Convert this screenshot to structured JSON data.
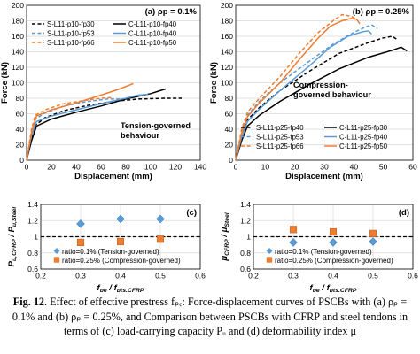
{
  "colors": {
    "black": "#000000",
    "blue": "#5B9BD5",
    "orange": "#ED7D31",
    "ref_line": "#000000",
    "marker_blue": "#5B9BD5",
    "marker_orange": "#ED7D31"
  },
  "caption": {
    "fig_label": "Fig. 12",
    "text": ". Effect of effective prestress fₚₑ: Force-displacement curves of PSCBs with (a) ρₚ = 0.1% and (b) ρₚ = 0.25%, and Comparison between PSCBs with CFRP and steel tendons in terms of (c) load-carrying capacity Pᵤ and (d) deformability index μ"
  },
  "chart_data": [
    {
      "id": "a",
      "type": "line",
      "panel_label": "(a) ρp = 0.1%",
      "xlabel": "Displacement (mm)",
      "ylabel": "Force (kN)",
      "xlim": [
        0,
        140
      ],
      "ylim": [
        0,
        200
      ],
      "xticks": [
        0,
        20,
        40,
        60,
        80,
        100,
        120,
        140
      ],
      "yticks": [
        0,
        20,
        40,
        60,
        80,
        100,
        120,
        140,
        160,
        180,
        200
      ],
      "annotation": [
        "Tension-governed",
        "behaviour"
      ],
      "legend_position": "top-left",
      "series": [
        {
          "name": "S-L11-p10-fp30",
          "color": "#000000",
          "dash": "dashed",
          "points": [
            [
              0,
              0
            ],
            [
              4,
              28
            ],
            [
              7,
              45
            ],
            [
              15,
              55
            ],
            [
              30,
              64
            ],
            [
              50,
              71
            ],
            [
              70,
              76
            ],
            [
              90,
              79
            ],
            [
              112,
              80
            ],
            [
              125,
              80
            ]
          ]
        },
        {
          "name": "S-L11-p10-fp53",
          "color": "#5B9BD5",
          "dash": "dashed",
          "points": [
            [
              0,
              0
            ],
            [
              4,
              36
            ],
            [
              7,
              53
            ],
            [
              15,
              61
            ],
            [
              30,
              70
            ],
            [
              50,
              76
            ],
            [
              65,
              79
            ],
            [
              80,
              79
            ]
          ]
        },
        {
          "name": "S-L11-p10-fp66",
          "color": "#ED7D31",
          "dash": "dashed",
          "points": [
            [
              0,
              0
            ],
            [
              4,
              40
            ],
            [
              7,
              58
            ],
            [
              15,
              65
            ],
            [
              30,
              73
            ],
            [
              50,
              78
            ],
            [
              60,
              80
            ],
            [
              70,
              81
            ]
          ]
        },
        {
          "name": "C-L11-p10-fp40",
          "color": "#000000",
          "dash": "solid",
          "points": [
            [
              0,
              0
            ],
            [
              4,
              25
            ],
            [
              8,
              44
            ],
            [
              20,
              53
            ],
            [
              40,
              62
            ],
            [
              60,
              70
            ],
            [
              80,
              79
            ],
            [
              100,
              86
            ],
            [
              112,
              92
            ]
          ]
        },
        {
          "name": "C-L11-p10-fp40",
          "color": "#5B9BD5",
          "dash": "solid",
          "points": [
            [
              0,
              0
            ],
            [
              4,
              32
            ],
            [
              8,
              50
            ],
            [
              20,
              57
            ],
            [
              40,
              65
            ],
            [
              60,
              73
            ],
            [
              80,
              80
            ],
            [
              90,
              84
            ],
            [
              98,
              85
            ]
          ]
        },
        {
          "name": "C-L11-p10-fp50",
          "color": "#ED7D31",
          "dash": "solid",
          "points": [
            [
              0,
              0
            ],
            [
              4,
              36
            ],
            [
              8,
              57
            ],
            [
              20,
              65
            ],
            [
              40,
              74
            ],
            [
              60,
              84
            ],
            [
              75,
              92
            ],
            [
              86,
              99
            ]
          ]
        }
      ]
    },
    {
      "id": "b",
      "type": "line",
      "panel_label": "(b) ρp = 0.25%",
      "xlabel": "Displacement (mm)",
      "ylabel": "Force (kN)",
      "xlim": [
        0,
        60
      ],
      "ylim": [
        0,
        200
      ],
      "xticks": [
        0,
        10,
        20,
        30,
        40,
        50,
        60
      ],
      "yticks": [
        0,
        20,
        40,
        60,
        80,
        100,
        120,
        140,
        160,
        180,
        200
      ],
      "annotation": [
        "Compression-",
        "governed behaviour"
      ],
      "legend_position": "bottom-right",
      "series": [
        {
          "name": "S-L11-p25-fp40",
          "color": "#000000",
          "dash": "dashed",
          "points": [
            [
              0,
              0
            ],
            [
              2,
              30
            ],
            [
              4,
              52
            ],
            [
              8,
              68
            ],
            [
              15,
              90
            ],
            [
              25,
              115
            ],
            [
              35,
              138
            ],
            [
              45,
              152
            ],
            [
              50,
              158
            ],
            [
              53,
              160
            ],
            [
              55,
              155
            ]
          ]
        },
        {
          "name": "S-L11-p25-fp53",
          "color": "#5B9BD5",
          "dash": "dashed",
          "points": [
            [
              0,
              0
            ],
            [
              2,
              35
            ],
            [
              4,
              58
            ],
            [
              8,
              76
            ],
            [
              15,
              100
            ],
            [
              25,
              128
            ],
            [
              33,
              150
            ],
            [
              40,
              165
            ],
            [
              44,
              172
            ],
            [
              46,
              175
            ],
            [
              48,
              170
            ]
          ]
        },
        {
          "name": "S-L11-p25-fp66",
          "color": "#ED7D31",
          "dash": "dashed",
          "points": [
            [
              0,
              0
            ],
            [
              2,
              40
            ],
            [
              4,
              62
            ],
            [
              8,
              80
            ],
            [
              15,
              108
            ],
            [
              22,
              140
            ],
            [
              28,
              165
            ],
            [
              33,
              180
            ],
            [
              36,
              188
            ],
            [
              39,
              186
            ],
            [
              41,
              182
            ]
          ]
        },
        {
          "name": "C-L11-p25-fp30",
          "color": "#000000",
          "dash": "solid",
          "points": [
            [
              0,
              0
            ],
            [
              2,
              25
            ],
            [
              4,
              44
            ],
            [
              8,
              58
            ],
            [
              15,
              76
            ],
            [
              25,
              98
            ],
            [
              35,
              118
            ],
            [
              45,
              133
            ],
            [
              53,
              142
            ],
            [
              56,
              146
            ],
            [
              58,
              141
            ]
          ]
        },
        {
          "name": "C-L11-p25-fp40",
          "color": "#5B9BD5",
          "dash": "solid",
          "points": [
            [
              0,
              0
            ],
            [
              2,
              30
            ],
            [
              4,
              50
            ],
            [
              8,
              66
            ],
            [
              15,
              90
            ],
            [
              25,
              122
            ],
            [
              32,
              146
            ],
            [
              38,
              160
            ],
            [
              43,
              166
            ],
            [
              45,
              167
            ],
            [
              46,
              163
            ]
          ]
        },
        {
          "name": "C-L11-p25-fp50",
          "color": "#ED7D31",
          "dash": "solid",
          "points": [
            [
              0,
              0
            ],
            [
              2,
              35
            ],
            [
              4,
              56
            ],
            [
              8,
              74
            ],
            [
              15,
              100
            ],
            [
              22,
              132
            ],
            [
              28,
              158
            ],
            [
              32,
              173
            ],
            [
              36,
              180
            ],
            [
              39,
              183
            ],
            [
              41,
              182
            ],
            [
              42,
              176
            ]
          ]
        }
      ]
    },
    {
      "id": "c",
      "type": "scatter",
      "panel_label": "(c)",
      "xlabel": "fpe / fpts,CFRP",
      "ylabel": "Pu,CFRP / Pu,Steel",
      "xlim": [
        0.2,
        0.6
      ],
      "ylim": [
        0.6,
        1.4
      ],
      "xticks": [
        0.2,
        0.3,
        0.4,
        0.5,
        0.6
      ],
      "yticks": [
        0.6,
        0.8,
        1.0,
        1.2,
        1.4
      ],
      "reference_line": 1.0,
      "legend_position": "bottom-center",
      "series": [
        {
          "name": "ratio=0.1% (Tension-governed)",
          "marker": "diamond",
          "color": "#5B9BD5",
          "x": [
            0.3,
            0.4,
            0.5
          ],
          "y": [
            1.16,
            1.22,
            1.22
          ]
        },
        {
          "name": "ratio=0.25% (Compression-governed)",
          "marker": "square",
          "color": "#ED7D31",
          "x": [
            0.3,
            0.4,
            0.5
          ],
          "y": [
            0.93,
            0.94,
            0.97
          ]
        }
      ]
    },
    {
      "id": "d",
      "type": "scatter",
      "panel_label": "(d)",
      "xlabel": "fpe / fpts,CFRP",
      "ylabel": "μCFRP / μSteel",
      "xlim": [
        0.2,
        0.6
      ],
      "ylim": [
        0.6,
        1.4
      ],
      "xticks": [
        0.2,
        0.3,
        0.4,
        0.5,
        0.6
      ],
      "yticks": [
        0.6,
        0.8,
        1.0,
        1.2,
        1.4
      ],
      "reference_line": 1.0,
      "legend_position": "bottom-center",
      "series": [
        {
          "name": "ratio=0.1% (Tension-governed)",
          "marker": "diamond",
          "color": "#5B9BD5",
          "x": [
            0.3,
            0.4,
            0.5
          ],
          "y": [
            0.93,
            0.93,
            0.94
          ]
        },
        {
          "name": "ratio=0.25% (Compression-governed)",
          "marker": "square",
          "color": "#ED7D31",
          "x": [
            0.3,
            0.4,
            0.5
          ],
          "y": [
            1.09,
            1.06,
            1.04
          ]
        }
      ]
    }
  ]
}
